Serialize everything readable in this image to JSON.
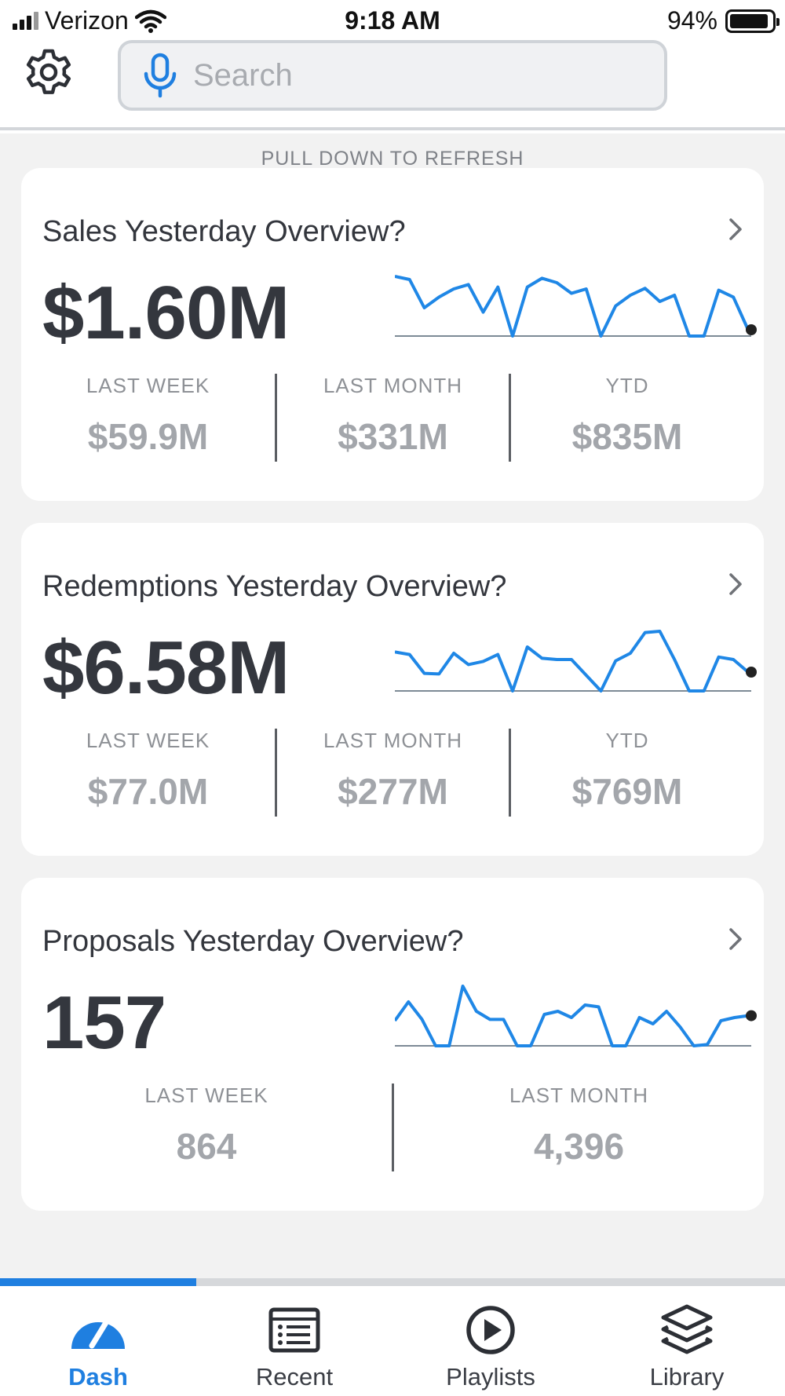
{
  "status_bar": {
    "carrier": "Verizon",
    "time": "9:18 AM",
    "battery": "94%"
  },
  "search": {
    "placeholder": "Search"
  },
  "refresh_hint": "PULL DOWN TO REFRESH",
  "cards": [
    {
      "title": "Sales Yesterday Overview?",
      "value": "$1.60M",
      "sparkline": [
        0.95,
        0.9,
        0.45,
        0.62,
        0.75,
        0.82,
        0.38,
        0.78,
        0.0,
        0.78,
        0.92,
        0.85,
        0.68,
        0.75,
        0.0,
        0.48,
        0.65,
        0.76,
        0.55,
        0.65,
        0.0,
        0.0,
        0.73,
        0.62,
        0.1
      ],
      "stats": [
        {
          "label": "LAST WEEK",
          "value": "$59.9M"
        },
        {
          "label": "LAST MONTH",
          "value": "$331M"
        },
        {
          "label": "YTD",
          "value": "$835M"
        }
      ]
    },
    {
      "title": "Redemptions Yesterday Overview?",
      "value": "$6.58M",
      "sparkline": [
        0.62,
        0.58,
        0.28,
        0.27,
        0.6,
        0.42,
        0.47,
        0.58,
        0.0,
        0.7,
        0.52,
        0.5,
        0.5,
        0.25,
        0.0,
        0.48,
        0.6,
        0.93,
        0.95,
        0.5,
        0.0,
        0.0,
        0.54,
        0.5,
        0.3
      ],
      "stats": [
        {
          "label": "LAST WEEK",
          "value": "$77.0M"
        },
        {
          "label": "LAST MONTH",
          "value": "$277M"
        },
        {
          "label": "YTD",
          "value": "$769M"
        }
      ]
    },
    {
      "title": "Proposals Yesterday Overview?",
      "value": "157",
      "sparkline": [
        0.4,
        0.7,
        0.42,
        0.0,
        0.0,
        0.95,
        0.55,
        0.42,
        0.42,
        0.0,
        0.0,
        0.5,
        0.55,
        0.45,
        0.65,
        0.62,
        0.0,
        0.0,
        0.45,
        0.35,
        0.55,
        0.3,
        0.0,
        0.02,
        0.4,
        0.45,
        0.48
      ],
      "stats": [
        {
          "label": "LAST WEEK",
          "value": "864"
        },
        {
          "label": "LAST MONTH",
          "value": "4,396"
        }
      ]
    }
  ],
  "tabs": [
    {
      "label": "Dash",
      "icon": "dash-gauge-icon",
      "active": true
    },
    {
      "label": "Recent",
      "icon": "list-icon",
      "active": false
    },
    {
      "label": "Playlists",
      "icon": "play-circle-icon",
      "active": false
    },
    {
      "label": "Library",
      "icon": "layers-icon",
      "active": false
    }
  ],
  "tab_progress": 0.25,
  "colors": {
    "accent": "#1f7fe0",
    "spark": "#1f87e6",
    "background": "#f2f2f2"
  }
}
